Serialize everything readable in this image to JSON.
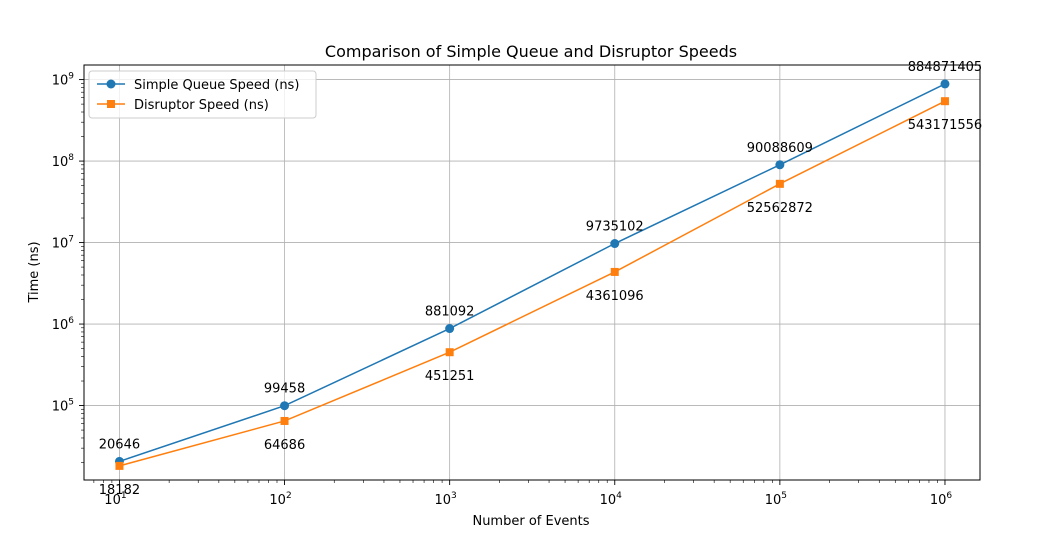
{
  "chart_data": {
    "type": "line",
    "title": "Comparison of Simple Queue and Disruptor Speeds",
    "xlabel": "Number of Events",
    "ylabel": "Time (ns)",
    "xscale": "log",
    "yscale": "log",
    "grid": true,
    "legend": "top-left",
    "x": [
      10,
      100,
      1000,
      10000,
      100000,
      1000000
    ],
    "xticks": [
      {
        "value": 10,
        "base": "10",
        "exp": "1"
      },
      {
        "value": 100,
        "base": "10",
        "exp": "2"
      },
      {
        "value": 1000,
        "base": "10",
        "exp": "3"
      },
      {
        "value": 10000,
        "base": "10",
        "exp": "4"
      },
      {
        "value": 100000,
        "base": "10",
        "exp": "5"
      },
      {
        "value": 1000000,
        "base": "10",
        "exp": "6"
      }
    ],
    "yticks": [
      {
        "value": 100000,
        "base": "10",
        "exp": "5"
      },
      {
        "value": 1000000,
        "base": "10",
        "exp": "6"
      },
      {
        "value": 10000000,
        "base": "10",
        "exp": "7"
      },
      {
        "value": 100000000,
        "base": "10",
        "exp": "8"
      },
      {
        "value": 1000000000,
        "base": "10",
        "exp": "9"
      }
    ],
    "xlim": [
      6.1,
      1630000
    ],
    "ylim": [
      12200,
      1510000000
    ],
    "series": [
      {
        "name": "Simple Queue Speed (ns)",
        "color": "#1f77b4",
        "marker": "circle",
        "label_position": "above",
        "values": [
          20646,
          99458,
          881092,
          9735102,
          90088609,
          884871405
        ],
        "labels": [
          "20646",
          "99458",
          "881092",
          "9735102",
          "90088609",
          "884871405"
        ]
      },
      {
        "name": "Disruptor Speed (ns)",
        "color": "#ff7f0e",
        "marker": "square",
        "label_position": "below",
        "values": [
          18182,
          64686,
          451251,
          4361096,
          52562872,
          543171556
        ],
        "labels": [
          "18182",
          "64686",
          "451251",
          "4361096",
          "52562872",
          "543171556"
        ]
      }
    ]
  }
}
